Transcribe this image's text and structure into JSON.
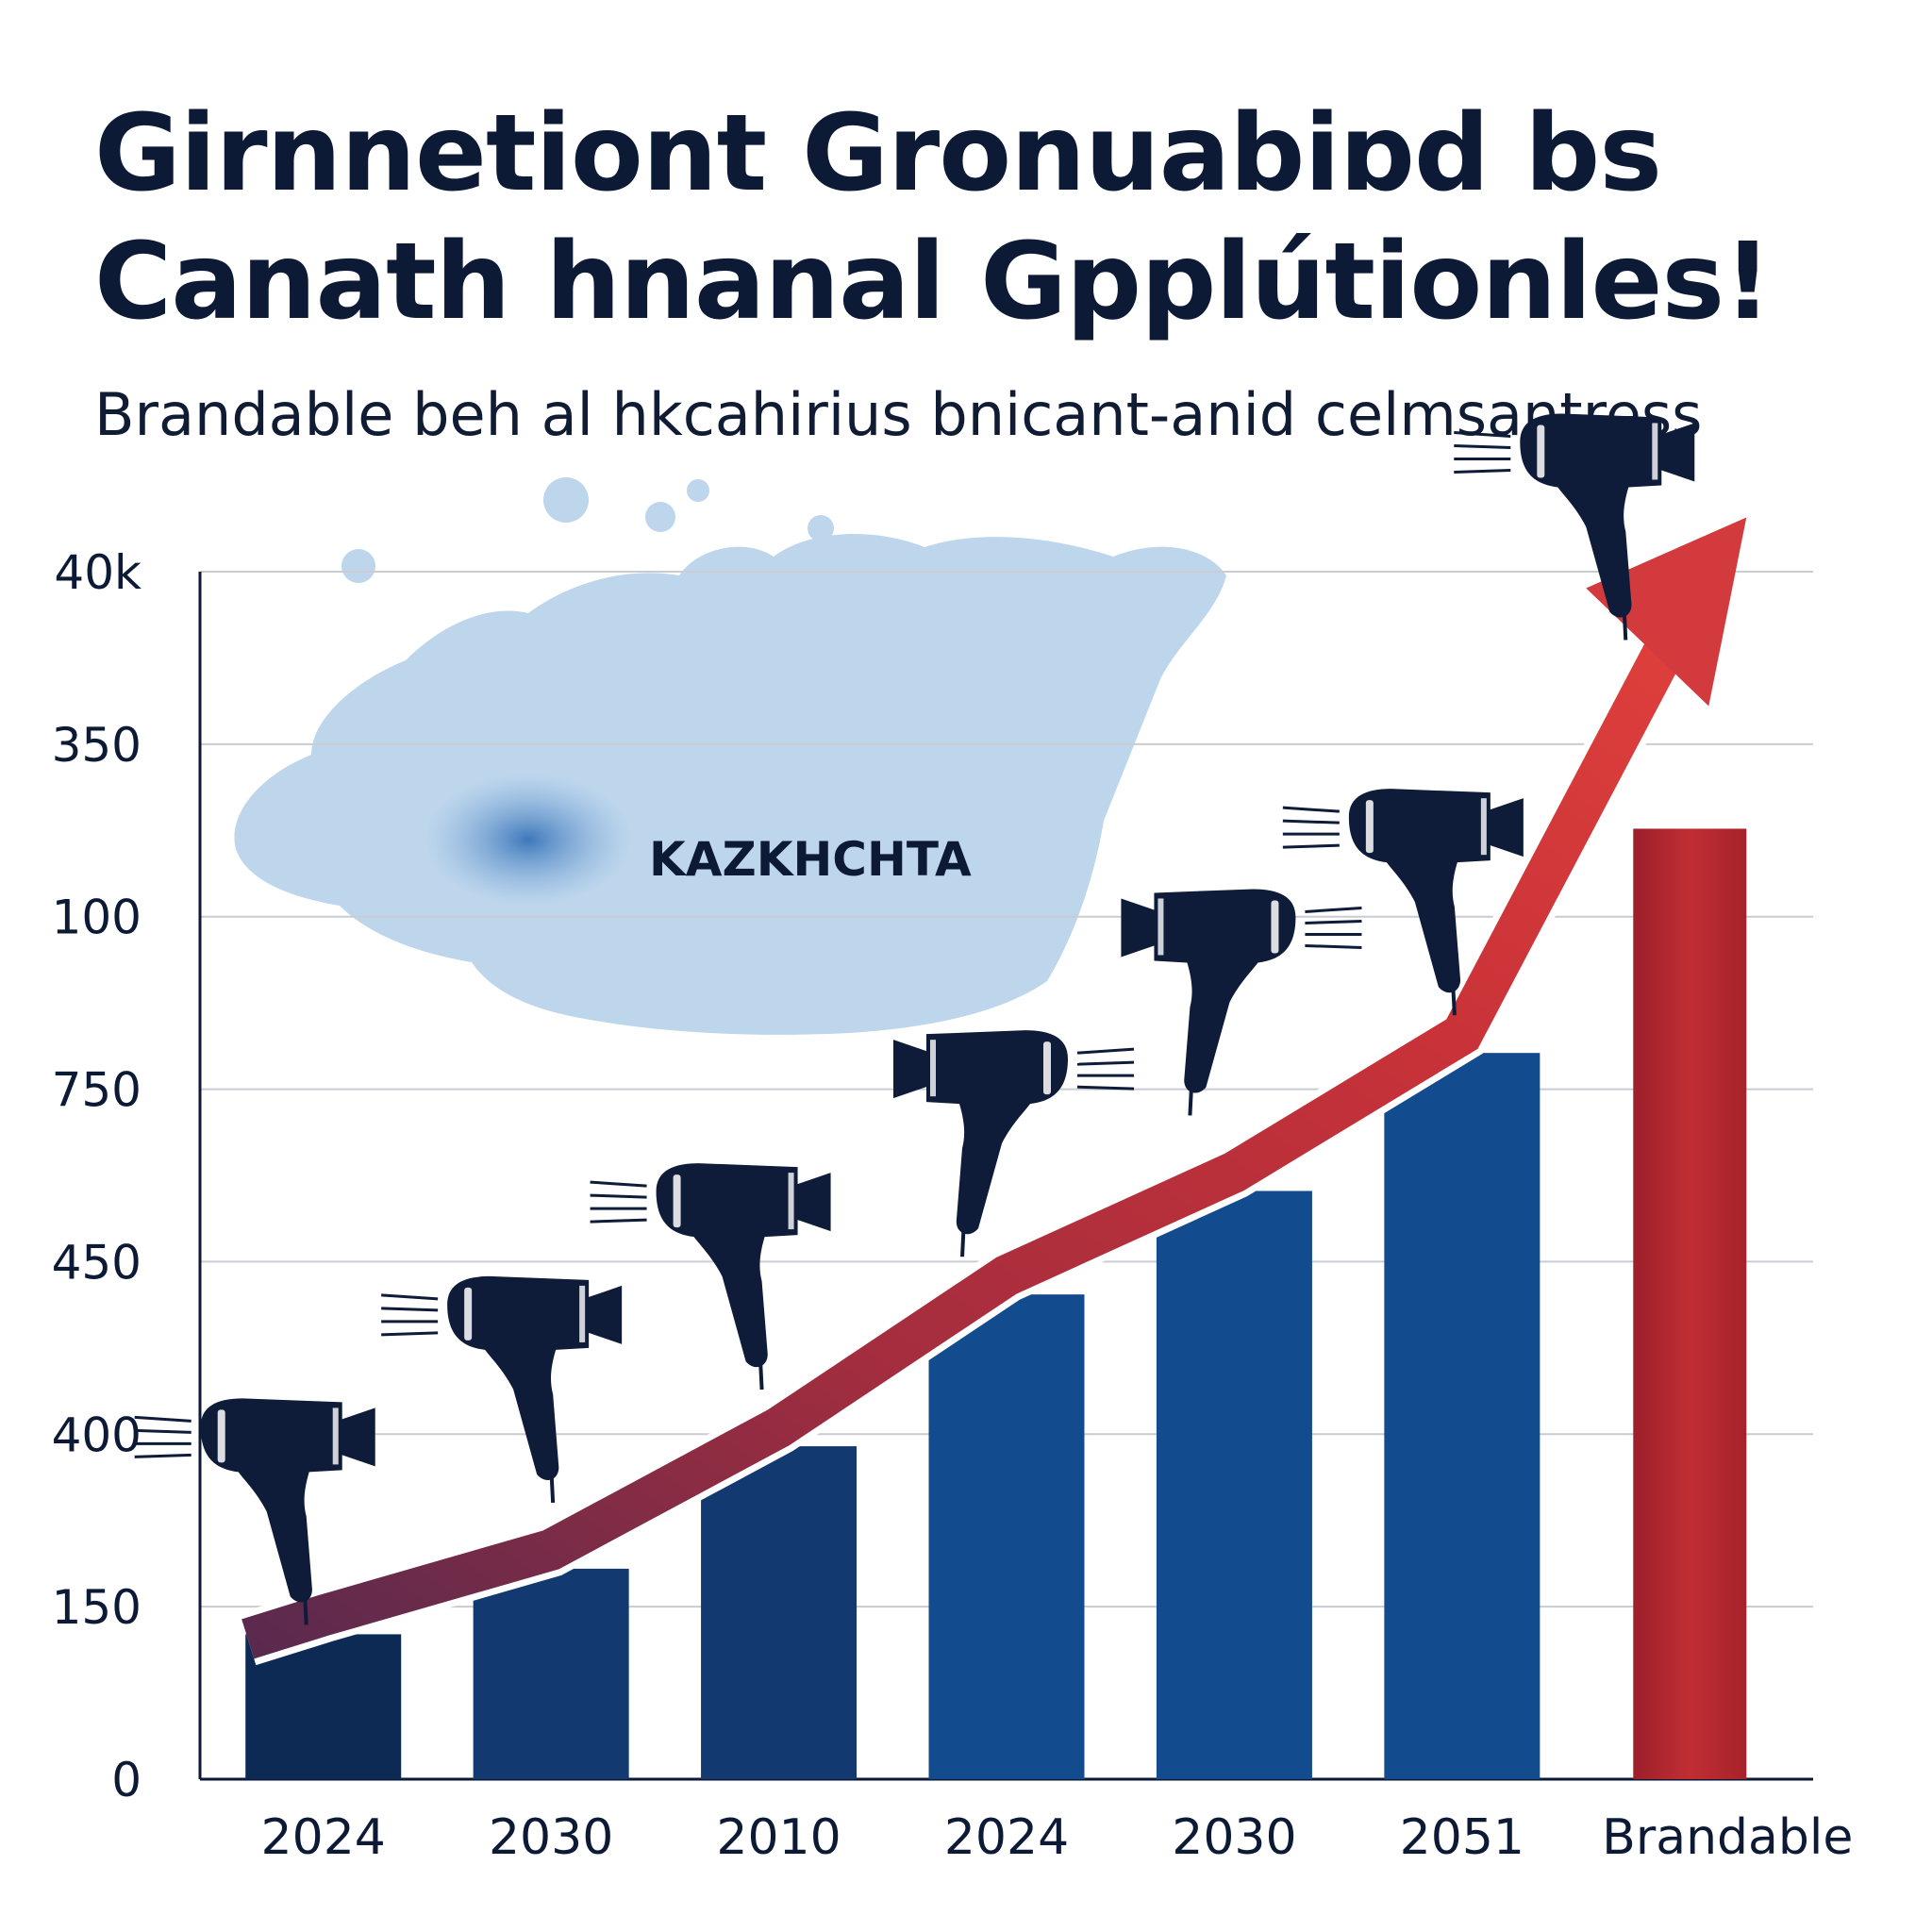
{
  "title": "Girnnetiont Gronuabiɒd bs\nCanath hnanal Gpplútionles!",
  "subtitle": "Brandable beh al hkcahirius bnicant-anid celmsantress",
  "map_label": "KAZKHCHTA",
  "colors": {
    "bar_navy": "#0d2a55",
    "bar_blue": "#134c8e",
    "bar_red": "#b3262e",
    "arrow_red": "#d33a3d",
    "arrow_navy": "#1d3c78",
    "map_fill": "#bdd6ec",
    "map_highlight": "#4f86c6",
    "grid": "#c9ccd3",
    "icon": "#0e1c3a"
  },
  "icons": [
    "hair-dryer-icon"
  ],
  "chart_data": {
    "type": "bar",
    "title": "Girnnetiont Gronuabiɒd bs Canath hnanal Gpplútionles!",
    "subtitle": "Brandable beh al hkcahirius bnicant-anid celmsantress",
    "xlabel": "",
    "ylabel": "",
    "y_ticks": [
      "0",
      "150",
      "400",
      "450",
      "750",
      "100",
      "350",
      "40k"
    ],
    "categories": [
      "2024",
      "2030",
      "2010",
      "2024",
      "2030",
      "2051",
      "Brandable"
    ],
    "values": [
      0.84,
      1.22,
      1.93,
      2.81,
      3.41,
      4.21,
      5.51
    ],
    "value_units": "gridline steps (0 to 7)",
    "ylim": [
      0,
      7
    ],
    "grid": true,
    "legend": "none",
    "trend_arrow": true
  }
}
